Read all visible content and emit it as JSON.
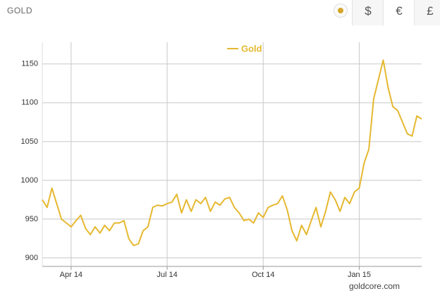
{
  "header": {
    "title": "GOLD",
    "currencies": [
      "$",
      "€",
      "£"
    ]
  },
  "chart_data": {
    "type": "line",
    "source": "goldcore.com",
    "categories": [
      null,
      null,
      null,
      null,
      null,
      null,
      "Apr 14",
      null,
      null,
      null,
      null,
      null,
      null,
      null,
      null,
      null,
      null,
      null,
      null,
      null,
      null,
      null,
      null,
      null,
      null,
      null,
      "Jul 14",
      null,
      null,
      null,
      null,
      null,
      null,
      null,
      null,
      null,
      null,
      null,
      null,
      null,
      null,
      null,
      null,
      null,
      null,
      null,
      "Oct 14",
      null,
      null,
      null,
      null,
      null,
      null,
      null,
      null,
      null,
      null,
      null,
      null,
      null,
      null,
      null,
      null,
      null,
      null,
      null,
      "Jan 15",
      null,
      null,
      null,
      null,
      null,
      null,
      null,
      null,
      null,
      null,
      null,
      null,
      null
    ],
    "series": [
      {
        "name": "Gold",
        "color": "#e6b830",
        "values": [
          975,
          965,
          990,
          970,
          950,
          945,
          940,
          948,
          955,
          938,
          930,
          940,
          932,
          942,
          935,
          945,
          945,
          948,
          925,
          916,
          918,
          935,
          940,
          965,
          968,
          967,
          970,
          972,
          982,
          958,
          975,
          960,
          975,
          970,
          978,
          960,
          972,
          968,
          976,
          978,
          965,
          958,
          948,
          950,
          945,
          958,
          952,
          965,
          968,
          970,
          980,
          962,
          935,
          922,
          942,
          930,
          948,
          965,
          940,
          960,
          985,
          975,
          960,
          978,
          970,
          985,
          990,
          1022,
          1040,
          1105,
          1130,
          1155,
          1120,
          1095,
          1090,
          1075,
          1060,
          1057,
          1083,
          1079
        ]
      }
    ],
    "ylim": [
      889,
      1178
    ],
    "yticks": [
      900,
      950,
      1000,
      1050,
      1100,
      1150
    ],
    "grid": true,
    "legend": "top"
  }
}
